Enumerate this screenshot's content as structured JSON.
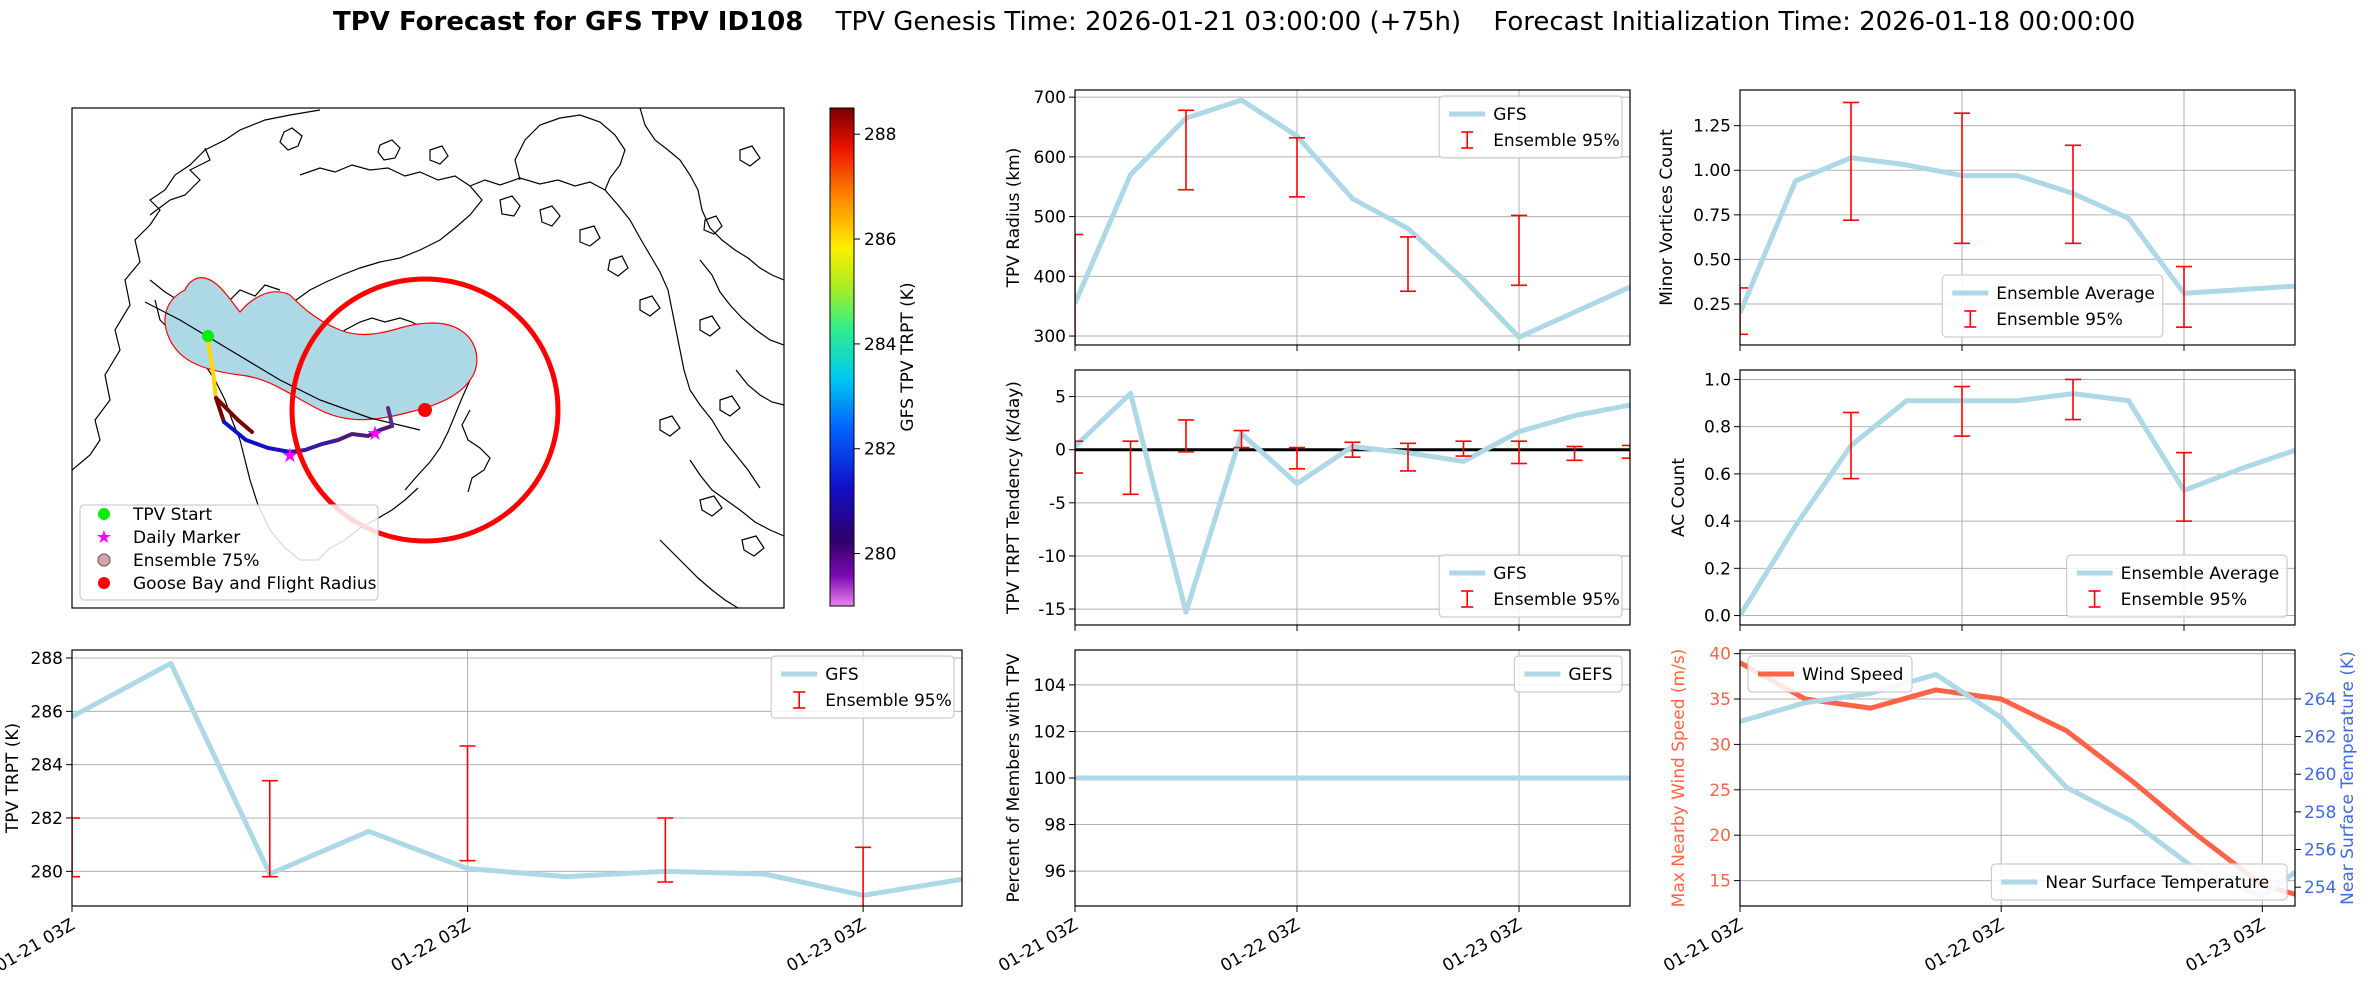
{
  "title": {
    "bold": "TPV Forecast for GFS TPV ID108",
    "genesis": "TPV Genesis Time: 2026-01-21 03:00:00 (+75h)",
    "init": "Forecast Initialization Time: 2026-01-18 00:00:00"
  },
  "colors": {
    "line": "#add8e6",
    "errorbar": "#ff0000",
    "wind": "#ff6347",
    "temp_axis": "#4169e1",
    "ensemble_fill": "#add8e6",
    "start": "#00ff00",
    "marker": "#ff00ff",
    "goose": "#ff0000"
  },
  "x_ticks": [
    "01-21 03Z",
    "01-22 03Z",
    "01-23 03Z"
  ],
  "map": {
    "colorbar_label": "GFS TPV TRPT (K)",
    "colorbar_ticks": [
      "280",
      "282",
      "284",
      "286",
      "288"
    ],
    "colorbar_range": [
      279,
      288.5
    ],
    "legend": {
      "start": "TPV Start",
      "marker": "Daily Marker",
      "ensemble": "Ensemble 75%",
      "goose": "Goose Bay and Flight Radius"
    }
  },
  "chart_data": [
    {
      "id": "radius",
      "type": "line",
      "ylabel": "TPV Radius (km)",
      "ylim": [
        285,
        712
      ],
      "yticks": [
        300,
        400,
        500,
        600,
        700
      ],
      "xlim": [
        0,
        10
      ],
      "x_tick_pos": [
        0,
        4,
        8
      ],
      "series": [
        {
          "name": "GFS",
          "x": [
            0,
            1,
            2,
            3,
            4,
            5,
            6,
            7,
            8,
            9,
            10
          ],
          "values": [
            355,
            570,
            665,
            695,
            635,
            530,
            480,
            395,
            298,
            340,
            382
          ]
        }
      ],
      "errorbars": {
        "name": "Ensemble 95%",
        "x": [
          0,
          2,
          4,
          6,
          8
        ],
        "low": [
          null,
          545,
          533,
          375,
          385
        ],
        "high": [
          470,
          678,
          632,
          466,
          502
        ]
      },
      "legend": [
        "GFS",
        "Ensemble 95%"
      ],
      "legend_pos": "upper-right"
    },
    {
      "id": "minor",
      "type": "line",
      "ylabel": "Minor Vortices Count",
      "ylim": [
        0.02,
        1.45
      ],
      "yticks": [
        0.25,
        0.5,
        0.75,
        1.0,
        1.25
      ],
      "ytick_labels": [
        "0.25",
        "0.50",
        "0.75",
        "1.00",
        "1.25"
      ],
      "xlim": [
        0,
        10
      ],
      "x_tick_pos": [
        0,
        4,
        8
      ],
      "series": [
        {
          "name": "Ensemble Average",
          "x": [
            0,
            1,
            2,
            3,
            4,
            5,
            6,
            7,
            8,
            9,
            10
          ],
          "values": [
            0.2,
            0.94,
            1.07,
            1.03,
            0.97,
            0.97,
            0.87,
            0.73,
            0.31,
            0.33,
            0.35
          ]
        }
      ],
      "errorbars": {
        "name": "Ensemble 95%",
        "x": [
          0,
          2,
          4,
          6,
          8
        ],
        "low": [
          0.08,
          0.72,
          0.59,
          0.59,
          0.12
        ],
        "high": [
          0.34,
          1.38,
          1.32,
          1.14,
          0.46
        ]
      },
      "legend": [
        "Ensemble Average",
        "Ensemble 95%"
      ],
      "legend_pos": "lower-center"
    },
    {
      "id": "tendency",
      "type": "line",
      "ylabel": "TPV TRPT Tendency (K/day)",
      "ylim": [
        -16.5,
        7.5
      ],
      "yticks": [
        -15,
        -10,
        -5,
        0,
        5
      ],
      "xlim": [
        0,
        10
      ],
      "x_tick_pos": [
        0,
        4,
        8
      ],
      "zero_line": true,
      "series": [
        {
          "name": "GFS",
          "x": [
            0,
            1,
            2,
            3,
            4,
            5,
            6,
            7,
            8,
            9,
            10
          ],
          "values": [
            0.3,
            5.3,
            -15.3,
            1.5,
            -3.2,
            0.3,
            -0.3,
            -1.1,
            1.7,
            3.2,
            4.2
          ]
        }
      ],
      "errorbars": {
        "name": "Ensemble 95%",
        "x": [
          0,
          1,
          2,
          3,
          4,
          5,
          6,
          7,
          8,
          9,
          10
        ],
        "low": [
          -2.2,
          -4.2,
          -0.2,
          0.2,
          -1.8,
          -0.7,
          -2.0,
          -0.6,
          -1.3,
          -1.0,
          -0.8
        ],
        "high": [
          0.8,
          0.8,
          2.8,
          1.8,
          0.2,
          0.7,
          0.6,
          0.8,
          0.8,
          0.3,
          0.4
        ]
      },
      "legend": [
        "GFS",
        "Ensemble 95%"
      ],
      "legend_pos": "lower-right"
    },
    {
      "id": "ac",
      "type": "line",
      "ylabel": "AC Count",
      "ylim": [
        -0.04,
        1.04
      ],
      "yticks": [
        0,
        0.2,
        0.4,
        0.6,
        0.8,
        1.0
      ],
      "ytick_labels": [
        "0.0",
        "0.2",
        "0.4",
        "0.6",
        "0.8",
        "1.0"
      ],
      "xlim": [
        0,
        10
      ],
      "x_tick_pos": [
        0,
        4,
        8
      ],
      "series": [
        {
          "name": "Ensemble Average",
          "x": [
            0,
            1,
            2,
            3,
            4,
            5,
            6,
            7,
            8,
            9,
            10
          ],
          "values": [
            0.0,
            0.38,
            0.72,
            0.91,
            0.91,
            0.91,
            0.94,
            0.91,
            0.53,
            0.62,
            0.7
          ]
        }
      ],
      "errorbars": {
        "name": "Ensemble 95%",
        "x": [
          0,
          2,
          4,
          6,
          8
        ],
        "low": [
          null,
          0.58,
          0.76,
          0.83,
          0.4
        ],
        "high": [
          null,
          0.86,
          0.97,
          1.0,
          0.69
        ]
      },
      "legend": [
        "Ensemble Average",
        "Ensemble 95%"
      ],
      "legend_pos": "lower-right"
    },
    {
      "id": "trpt",
      "type": "line",
      "ylabel": "TPV TRPT (K)",
      "ylim": [
        278.7,
        288.3
      ],
      "yticks": [
        280,
        282,
        284,
        286,
        288
      ],
      "xlim": [
        0,
        9
      ],
      "x_tick_pos": [
        0,
        4,
        8
      ],
      "series": [
        {
          "name": "GFS",
          "x": [
            0,
            1,
            2,
            3,
            4,
            5,
            6,
            7,
            8,
            9
          ],
          "values": [
            285.8,
            287.8,
            279.9,
            281.5,
            280.1,
            279.8,
            280.0,
            279.9,
            279.1,
            279.7
          ]
        }
      ],
      "errorbars": {
        "name": "Ensemble 95%",
        "x": [
          0,
          2,
          4,
          6,
          8
        ],
        "low": [
          279.8,
          279.8,
          280.4,
          279.6,
          278.6
        ],
        "high": [
          282.0,
          283.4,
          284.7,
          282.0,
          280.9
        ]
      },
      "legend": [
        "GFS",
        "Ensemble 95%"
      ],
      "legend_pos": "upper-right"
    },
    {
      "id": "percent",
      "type": "line",
      "ylabel": "Percent of Members with TPV",
      "ylim": [
        94.5,
        105.5
      ],
      "yticks": [
        96,
        98,
        100,
        102,
        104
      ],
      "xlim": [
        0,
        10
      ],
      "x_tick_pos": [
        0,
        4,
        8
      ],
      "series": [
        {
          "name": "GEFS",
          "x": [
            0,
            10
          ],
          "values": [
            100,
            100
          ]
        }
      ],
      "legend": [
        "GEFS"
      ],
      "legend_pos": "upper-right"
    },
    {
      "id": "wind",
      "type": "line",
      "ylabel": "Max Nearby Wind Speed (m/s)",
      "ylabel_right": "Near Surface Temperature (K)",
      "ylim": [
        12.2,
        40.4
      ],
      "yticks": [
        15,
        20,
        25,
        30,
        35,
        40
      ],
      "ylim_right": [
        253.0,
        266.6
      ],
      "yticks_right": [
        254,
        256,
        258,
        260,
        262,
        264
      ],
      "xlim": [
        0,
        8.5
      ],
      "x_tick_pos": [
        0,
        4,
        8
      ],
      "series": [
        {
          "name": "Wind Speed",
          "axis": "left",
          "x": [
            0,
            1,
            2,
            3,
            4,
            5,
            6,
            7,
            8,
            8.5
          ],
          "values": [
            39,
            35,
            34,
            36,
            35,
            31.5,
            26,
            20,
            14.5,
            13.5
          ]
        },
        {
          "name": "Near Surface Temperature",
          "axis": "right",
          "x": [
            0,
            1,
            2,
            3,
            4,
            5,
            6,
            7,
            8,
            8.5
          ],
          "values": [
            262.8,
            263.8,
            264.3,
            265.3,
            263.0,
            259.3,
            257.5,
            254.9,
            253.5,
            254.8
          ]
        }
      ],
      "legend": [
        "Wind Speed",
        "Near Surface Temperature"
      ]
    }
  ]
}
